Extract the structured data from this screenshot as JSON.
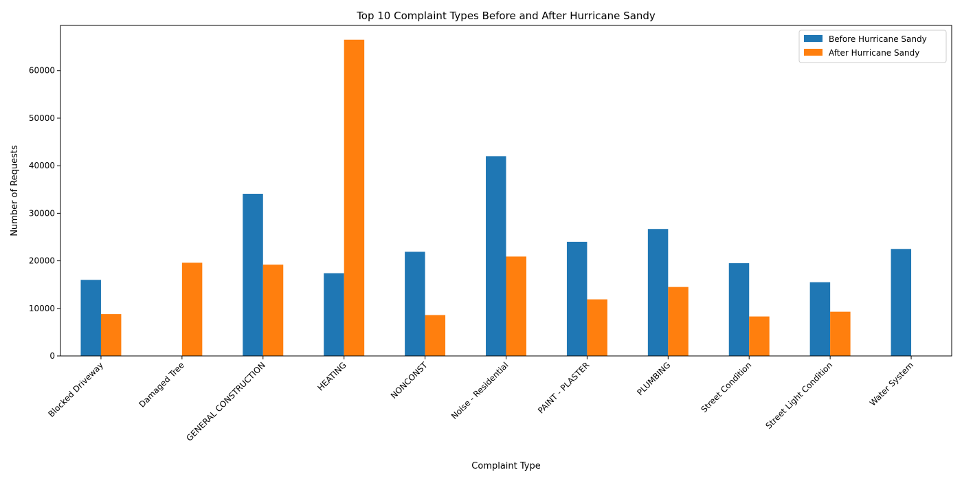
{
  "chart_data": {
    "type": "bar",
    "title": "Top 10 Complaint Types Before and After Hurricane Sandy",
    "xlabel": "Complaint Type",
    "ylabel": "Number of Requests",
    "ylim": [
      0,
      69500
    ],
    "yticks": [
      0,
      10000,
      20000,
      30000,
      40000,
      50000,
      60000
    ],
    "grid": false,
    "legend_position": "top-right",
    "categories": [
      "Blocked Driveway",
      "Damaged Tree",
      "GENERAL CONSTRUCTION",
      "HEATING",
      "NONCONST",
      "Noise - Residential",
      "PAINT - PLASTER",
      "PLUMBING",
      "Street Condition",
      "Street Light Condition",
      "Water System"
    ],
    "series": [
      {
        "name": "Before Hurricane Sandy",
        "color": "#1f77b4",
        "values": [
          16000,
          null,
          34100,
          17400,
          21900,
          42000,
          24000,
          26700,
          19500,
          15500,
          22500
        ]
      },
      {
        "name": "After Hurricane Sandy",
        "color": "#ff7f0e",
        "values": [
          8800,
          19600,
          19200,
          66500,
          8600,
          20900,
          11900,
          14500,
          8300,
          9300,
          null
        ]
      }
    ]
  }
}
